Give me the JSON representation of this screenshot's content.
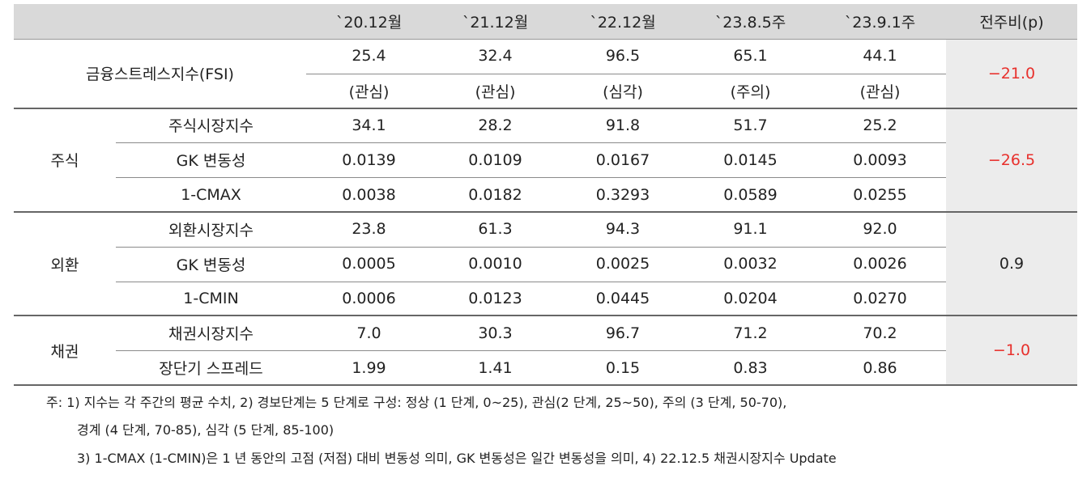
{
  "header": {
    "columns": [
      "`20.12월",
      "`21.12월",
      "`22.12월",
      "`23.8.5주",
      "`23.9.1주"
    ],
    "change": "전주비(p)"
  },
  "groups": [
    {
      "label": "금융스트레스지수(FSI)",
      "change": "−21.0",
      "change_color": "#e8302c",
      "rows": [
        {
          "values": [
            "25.4",
            "32.4",
            "96.5",
            "65.1",
            "44.1"
          ]
        },
        {
          "values": [
            "(관심)",
            "(관심)",
            "(심각)",
            "(주의)",
            "(관심)"
          ]
        }
      ]
    },
    {
      "label": "주식",
      "change": "−26.5",
      "change_color": "#e8302c",
      "rows": [
        {
          "label": "주식시장지수",
          "values": [
            "34.1",
            "28.2",
            "91.8",
            "51.7",
            "25.2"
          ]
        },
        {
          "label": "GK 변동성",
          "values": [
            "0.0139",
            "0.0109",
            "0.0167",
            "0.0145",
            "0.0093"
          ]
        },
        {
          "label": "1-CMAX",
          "values": [
            "0.0038",
            "0.0182",
            "0.3293",
            "0.0589",
            "0.0255"
          ]
        }
      ]
    },
    {
      "label": "외환",
      "change": "0.9",
      "change_color": "#222222",
      "rows": [
        {
          "label": "외환시장지수",
          "values": [
            "23.8",
            "61.3",
            "94.3",
            "91.1",
            "92.0"
          ]
        },
        {
          "label": "GK 변동성",
          "values": [
            "0.0005",
            "0.0010",
            "0.0025",
            "0.0032",
            "0.0026"
          ]
        },
        {
          "label": "1-CMIN",
          "values": [
            "0.0006",
            "0.0123",
            "0.0445",
            "0.0204",
            "0.0270"
          ]
        }
      ]
    },
    {
      "label": "채권",
      "change": "−1.0",
      "change_color": "#e8302c",
      "rows": [
        {
          "label": "채권시장지수",
          "values": [
            "7.0",
            "30.3",
            "96.7",
            "71.2",
            "70.2"
          ]
        },
        {
          "label": "장단기 스프레드",
          "values": [
            "1.99",
            "1.41",
            "0.15",
            "0.83",
            "0.86"
          ]
        }
      ]
    }
  ],
  "notes": [
    "주: 1) 지수는 각 주간의 평균 수치, 2) 경보단계는 5 단계로 구성: 정상 (1 단계, 0~25), 관심(2 단계, 25~50), 주의 (3 단계, 50-70),",
    "경계 (4 단계, 70-85), 심각 (5 단계, 85-100)",
    "3) 1-CMAX (1-CMIN)은 1 년 동안의 고점 (저점) 대비 변동성 의미, GK 변동성은 일간 변동성을 의미, 4) 22.12.5 채권시장지수 Update"
  ]
}
